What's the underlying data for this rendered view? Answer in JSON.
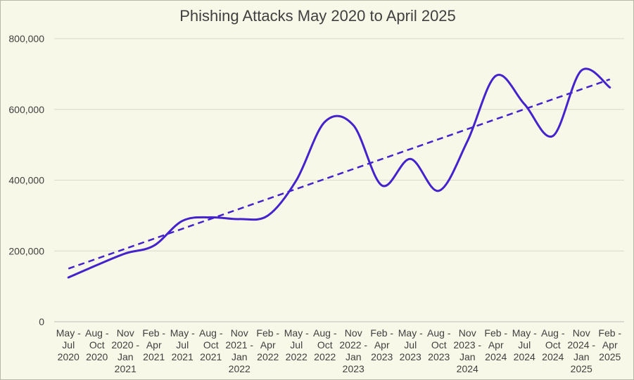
{
  "chart_data": {
    "type": "line",
    "title": "Phishing Attacks May 2020 to April 2025",
    "xlabel": "",
    "ylabel": "",
    "ylim": [
      0,
      800000
    ],
    "yticks": [
      "0",
      "200,000",
      "400,000",
      "600,000",
      "800,000"
    ],
    "ytick_values": [
      0,
      200000,
      400000,
      600000,
      800000
    ],
    "grid": "horizontal",
    "legend": "none",
    "categories": [
      [
        "May -",
        "Jul",
        "2020"
      ],
      [
        "Aug -",
        "Oct",
        "2020"
      ],
      [
        "Nov",
        "2020 -",
        "Jan",
        "2021"
      ],
      [
        "Feb -",
        "Apr",
        "2021"
      ],
      [
        "May -",
        "Jul",
        "2021"
      ],
      [
        "Aug -",
        "Oct",
        "2021"
      ],
      [
        "Nov",
        "2021 -",
        "Jan",
        "2022"
      ],
      [
        "Feb -",
        "Apr",
        "2022"
      ],
      [
        "May -",
        "Jul",
        "2022"
      ],
      [
        "Aug -",
        "Oct",
        "2022"
      ],
      [
        "Nov",
        "2022 -",
        "Jan",
        "2023"
      ],
      [
        "Feb -",
        "Apr",
        "2023"
      ],
      [
        "May -",
        "Jul",
        "2023"
      ],
      [
        "Aug -",
        "Oct",
        "2023"
      ],
      [
        "Nov",
        "2023 -",
        "Jan",
        "2024"
      ],
      [
        "Feb -",
        "Apr",
        "2024"
      ],
      [
        "May -",
        "Jul",
        "2024"
      ],
      [
        "Aug -",
        "Oct",
        "2024"
      ],
      [
        "Nov",
        "2024 -",
        "Jan",
        "2025"
      ],
      [
        "Feb -",
        "Apr",
        "2025"
      ]
    ],
    "series": [
      {
        "values": [
          125000,
          160000,
          193000,
          215000,
          285000,
          295000,
          290000,
          300000,
          400000,
          565000,
          555000,
          385000,
          460000,
          370000,
          510000,
          695000,
          615000,
          525000,
          710000,
          662000
        ],
        "color": "#4422cc",
        "style": "solid-smooth"
      }
    ],
    "trendline": {
      "type": "linear",
      "start": 150000,
      "end": 685000,
      "color": "#4422cc",
      "style": "dashed"
    }
  }
}
